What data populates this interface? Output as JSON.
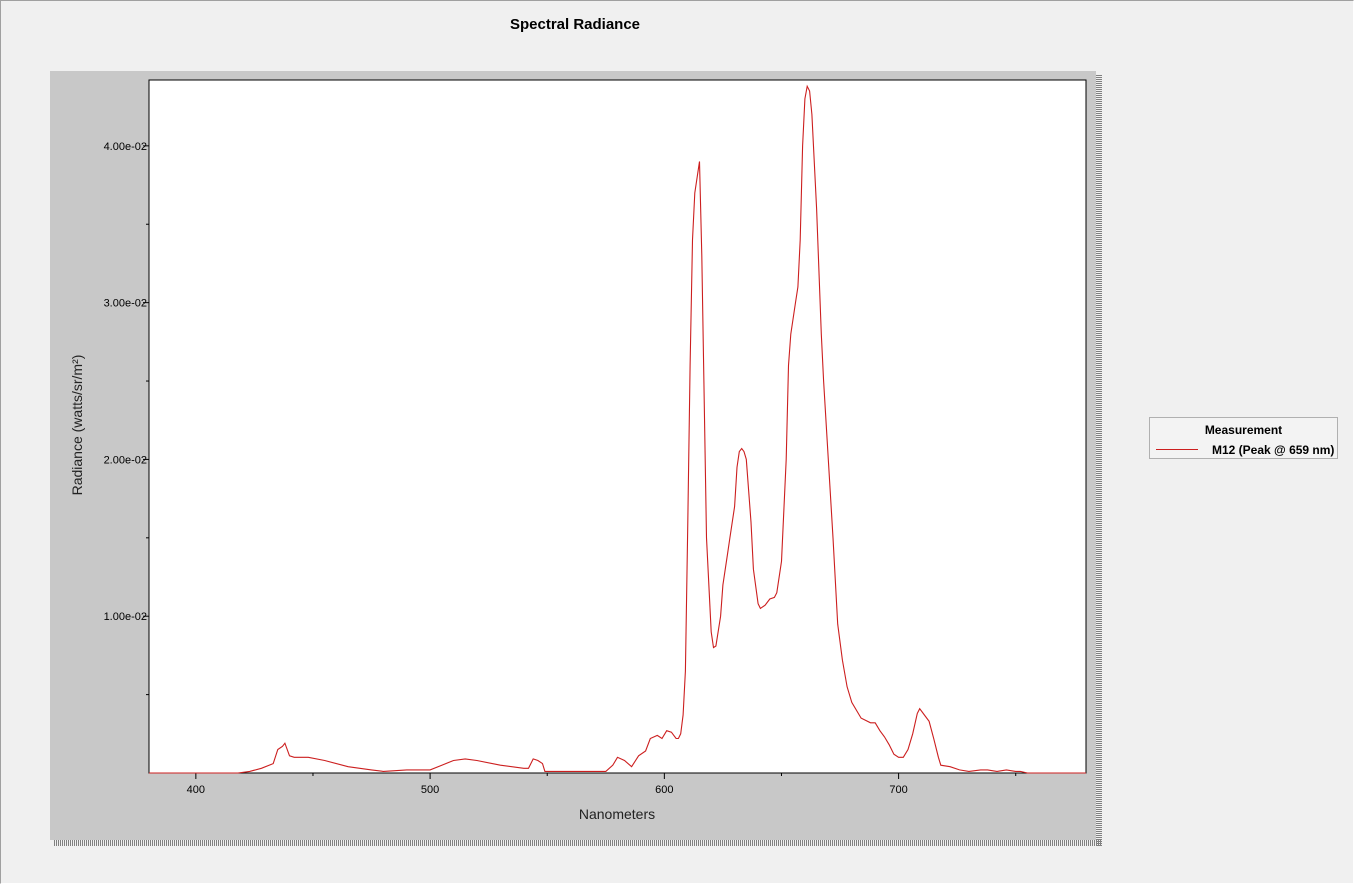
{
  "colors": {
    "series": "#cc1f1f",
    "panel": "#c8c8c8",
    "plot_bg": "#ffffff",
    "window_bg": "#f0f0f0"
  },
  "legend": {
    "title": "Measurement",
    "entries": [
      "M12 (Peak @ 659 nm)"
    ]
  },
  "chart_data": {
    "type": "line",
    "title": "Spectral Radiance",
    "xlabel": "Nanometers",
    "ylabel": "Radiance (watts/sr/m²)",
    "xlim": [
      380,
      780
    ],
    "ylim": [
      0,
      0.0442
    ],
    "x_ticks": [
      {
        "value": 400,
        "label": "400"
      },
      {
        "value": 500,
        "label": "500"
      },
      {
        "value": 600,
        "label": "600"
      },
      {
        "value": 700,
        "label": "700"
      }
    ],
    "x_minor_ticks": [
      450,
      550,
      650,
      750
    ],
    "y_ticks": [
      {
        "value": 0.01,
        "label": "1.00e-02"
      },
      {
        "value": 0.02,
        "label": "2.00e-02"
      },
      {
        "value": 0.03,
        "label": "3.00e-02"
      },
      {
        "value": 0.04,
        "label": "4.00e-02"
      }
    ],
    "y_minor_ticks": [
      0.005,
      0.015,
      0.025,
      0.035
    ],
    "grid": false,
    "legend_position": "right",
    "series": [
      {
        "name": "M12 (Peak @ 659 nm)",
        "points": [
          [
            380,
            0
          ],
          [
            418,
            0
          ],
          [
            423,
            0.0001
          ],
          [
            428,
            0.0003
          ],
          [
            433,
            0.0006
          ],
          [
            435,
            0.0015
          ],
          [
            437,
            0.0017
          ],
          [
            438,
            0.0019
          ],
          [
            440,
            0.0011
          ],
          [
            442,
            0.001
          ],
          [
            448,
            0.001
          ],
          [
            455,
            0.0008
          ],
          [
            465,
            0.0004
          ],
          [
            475,
            0.0002
          ],
          [
            480,
            0.0001
          ],
          [
            490,
            0.0002
          ],
          [
            500,
            0.0002
          ],
          [
            505,
            0.0005
          ],
          [
            510,
            0.0008
          ],
          [
            515,
            0.0009
          ],
          [
            520,
            0.0008
          ],
          [
            530,
            0.0005
          ],
          [
            540,
            0.0003
          ],
          [
            542,
            0.0003
          ],
          [
            544,
            0.0009
          ],
          [
            546,
            0.0008
          ],
          [
            548,
            0.0006
          ],
          [
            549,
            0.0001
          ],
          [
            560,
            0.0001
          ],
          [
            570,
            0.0001
          ],
          [
            575,
            0.0001
          ],
          [
            578,
            0.0005
          ],
          [
            580,
            0.001
          ],
          [
            583,
            0.0008
          ],
          [
            586,
            0.0004
          ],
          [
            589,
            0.0011
          ],
          [
            592,
            0.0014
          ],
          [
            594,
            0.0022
          ],
          [
            597,
            0.0024
          ],
          [
            599,
            0.0022
          ],
          [
            601,
            0.0027
          ],
          [
            603,
            0.0026
          ],
          [
            605,
            0.0022
          ],
          [
            606,
            0.0022
          ],
          [
            607,
            0.0025
          ],
          [
            608,
            0.0037
          ],
          [
            609,
            0.0065
          ],
          [
            610,
            0.016
          ],
          [
            611,
            0.026
          ],
          [
            612,
            0.034
          ],
          [
            613,
            0.037
          ],
          [
            615,
            0.039
          ],
          [
            616,
            0.033
          ],
          [
            618,
            0.015
          ],
          [
            620,
            0.009
          ],
          [
            621,
            0.008
          ],
          [
            622,
            0.0081
          ],
          [
            624,
            0.01
          ],
          [
            625,
            0.012
          ],
          [
            627,
            0.014
          ],
          [
            628,
            0.015
          ],
          [
            630,
            0.017
          ],
          [
            631,
            0.0195
          ],
          [
            632,
            0.0205
          ],
          [
            633,
            0.0207
          ],
          [
            634,
            0.0205
          ],
          [
            635,
            0.02
          ],
          [
            637,
            0.016
          ],
          [
            638,
            0.013
          ],
          [
            640,
            0.0108
          ],
          [
            641,
            0.0105
          ],
          [
            643,
            0.0107
          ],
          [
            645,
            0.0111
          ],
          [
            647,
            0.0112
          ],
          [
            648,
            0.0115
          ],
          [
            650,
            0.0135
          ],
          [
            652,
            0.02
          ],
          [
            653,
            0.026
          ],
          [
            654,
            0.028
          ],
          [
            656,
            0.03
          ],
          [
            657,
            0.031
          ],
          [
            658,
            0.034
          ],
          [
            659,
            0.04
          ],
          [
            660,
            0.043
          ],
          [
            661,
            0.0438
          ],
          [
            662,
            0.0435
          ],
          [
            663,
            0.042
          ],
          [
            665,
            0.036
          ],
          [
            667,
            0.028
          ],
          [
            668,
            0.025
          ],
          [
            670,
            0.02
          ],
          [
            672,
            0.015
          ],
          [
            674,
            0.0095
          ],
          [
            676,
            0.0072
          ],
          [
            678,
            0.0055
          ],
          [
            680,
            0.0045
          ],
          [
            684,
            0.0035
          ],
          [
            688,
            0.0032
          ],
          [
            690,
            0.0032
          ],
          [
            692,
            0.0027
          ],
          [
            694,
            0.0023
          ],
          [
            696,
            0.0018
          ],
          [
            698,
            0.0012
          ],
          [
            700,
            0.001
          ],
          [
            702,
            0.001
          ],
          [
            704,
            0.0015
          ],
          [
            706,
            0.0025
          ],
          [
            708,
            0.0038
          ],
          [
            709,
            0.0041
          ],
          [
            711,
            0.0037
          ],
          [
            713,
            0.0033
          ],
          [
            715,
            0.0022
          ],
          [
            717,
            0.001
          ],
          [
            718,
            0.0005
          ],
          [
            722,
            0.0004
          ],
          [
            726,
            0.0002
          ],
          [
            730,
            0.0001
          ],
          [
            735,
            0.0002
          ],
          [
            738,
            0.0002
          ],
          [
            742,
            0.0001
          ],
          [
            746,
            0.0002
          ],
          [
            750,
            0.0001
          ],
          [
            752,
            0.0001
          ],
          [
            755,
            0
          ],
          [
            780,
            0
          ]
        ]
      }
    ]
  }
}
